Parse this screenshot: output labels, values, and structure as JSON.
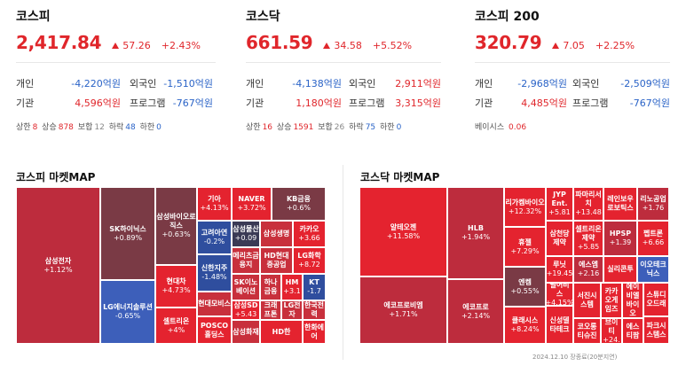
{
  "kospi": {
    "title": "코스피",
    "value": "2,417.84",
    "change": "57.26",
    "rate": "+2.43%",
    "individual_label": "개인",
    "individual_value": "-4,220억원",
    "foreign_label": "외국인",
    "foreign_value": "-1,510억원",
    "institution_label": "기관",
    "institution_value": "4,596억원",
    "program_label": "프로그램",
    "program_value": "-767억원",
    "stats": {
      "upper_label": "상한",
      "upper": "8",
      "up_label": "상승",
      "up": "878",
      "flat_label": "보합",
      "flat": "12",
      "down_label": "하락",
      "down": "48",
      "lower_label": "하한",
      "lower": "0"
    }
  },
  "kosdaq": {
    "title": "코스닥",
    "value": "661.59",
    "change": "34.58",
    "rate": "+5.52%",
    "individual_label": "개인",
    "individual_value": "-4,138억원",
    "foreign_label": "외국인",
    "foreign_value": "2,911억원",
    "institution_label": "기관",
    "institution_value": "1,180억원",
    "program_label": "프로그램",
    "program_value": "3,315억원",
    "stats": {
      "upper_label": "상한",
      "upper": "16",
      "up_label": "상승",
      "up": "1591",
      "flat_label": "보합",
      "flat": "26",
      "down_label": "하락",
      "down": "75",
      "lower_label": "하한",
      "lower": "0"
    }
  },
  "kospi200": {
    "title": "코스피 200",
    "value": "320.79",
    "change": "7.05",
    "rate": "+2.25%",
    "individual_label": "개인",
    "individual_value": "-2,968억원",
    "foreign_label": "외국인",
    "foreign_value": "-2,509억원",
    "institution_label": "기관",
    "institution_value": "4,485억원",
    "program_label": "프로그램",
    "program_value": "-767억원",
    "basis_label": "베이시스",
    "basis_value": "0.06"
  },
  "kospi_map": {
    "title": "코스피 마켓MAP",
    "tiles": [
      {
        "name": "삼성전자",
        "value": "+1.12%",
        "color": "#bd2c3d"
      },
      {
        "name": "SK하이닉스",
        "value": "+0.89%",
        "color": "#7a3a45"
      },
      {
        "name": "LG에너지솔루션",
        "value": "-0.65%",
        "color": "#3d5fba"
      },
      {
        "name": "삼성바이오로직스",
        "value": "+0.63%",
        "color": "#7a3a45"
      },
      {
        "name": "현대차",
        "value": "+4.73%",
        "color": "#e4232f"
      },
      {
        "name": "셀트리온",
        "value": "+4%",
        "color": "#e4232f"
      },
      {
        "name": "기아",
        "value": "+4.13%",
        "color": "#e4232f"
      },
      {
        "name": "NAVER",
        "value": "+3.72%",
        "color": "#e4232f"
      },
      {
        "name": "KB금융",
        "value": "+0.6%",
        "color": "#7a3a45"
      },
      {
        "name": "고려아연",
        "value": "-0.2%",
        "color": "#2f4e9e"
      },
      {
        "name": "삼성물산",
        "value": "+0.09",
        "color": "#3a3a55"
      },
      {
        "name": "삼성생명",
        "value": "",
        "color": "#c8303c"
      },
      {
        "name": "카카오",
        "value": "+3.66",
        "color": "#e4232f"
      },
      {
        "name": "메리츠금융지",
        "value": "",
        "color": "#c8303c"
      },
      {
        "name": "HD현대중공업",
        "value": "",
        "color": "#c8303c"
      },
      {
        "name": "LG화학",
        "value": "+8.72",
        "color": "#e4232f"
      },
      {
        "name": "신한지주",
        "value": "-1.48%",
        "color": "#2f4e9e"
      },
      {
        "name": "SK이노베이션",
        "value": "",
        "color": "#c8303c"
      },
      {
        "name": "하나금융",
        "value": "",
        "color": "#c8303c"
      },
      {
        "name": "HM",
        "value": "+3.1",
        "color": "#e4232f"
      },
      {
        "name": "KT",
        "value": "-1.7",
        "color": "#2f4e9e"
      },
      {
        "name": "현대모비스",
        "value": "",
        "color": "#c8303c"
      },
      {
        "name": "삼성SD",
        "value": "+5.43",
        "color": "#e4232f"
      },
      {
        "name": "크래프톤",
        "value": "",
        "color": "#c8303c"
      },
      {
        "name": "LG전자",
        "value": "",
        "color": "#c8303c"
      },
      {
        "name": "한국전력",
        "value": "",
        "color": "#c8303c"
      },
      {
        "name": "POSCO홀딩스",
        "value": "",
        "color": "#e4232f"
      },
      {
        "name": "삼성화재",
        "value": "",
        "color": "#c8303c"
      },
      {
        "name": "HD한",
        "value": "",
        "color": "#e4232f"
      },
      {
        "name": "한화에어",
        "value": "",
        "color": "#e4232f"
      }
    ]
  },
  "kosdaq_map": {
    "title": "코스닥 마켓MAP",
    "tiles": [
      {
        "name": "알테오젠",
        "value": "+11.58%",
        "color": "#e4232f"
      },
      {
        "name": "에코프로비엠",
        "value": "+1.71%",
        "color": "#bd2c3d"
      },
      {
        "name": "HLB",
        "value": "+1.94%",
        "color": "#bd2c3d"
      },
      {
        "name": "에코프로",
        "value": "+2.14%",
        "color": "#bd2c3d"
      },
      {
        "name": "리가켐바이오",
        "value": "+12.32%",
        "color": "#e4232f"
      },
      {
        "name": "휴젤",
        "value": "+7.29%",
        "color": "#e4232f"
      },
      {
        "name": "엔켐",
        "value": "+0.55%",
        "color": "#7a3a45"
      },
      {
        "name": "클래시스",
        "value": "+8.24%",
        "color": "#e4232f"
      },
      {
        "name": "JYP Ent.",
        "value": "+5.81",
        "color": "#e4232f"
      },
      {
        "name": "파마리서치",
        "value": "+13.48",
        "color": "#e4232f"
      },
      {
        "name": "레인보우로보틱스",
        "value": "",
        "color": "#e4232f"
      },
      {
        "name": "리노공업",
        "value": "+1.76",
        "color": "#bd2c3d"
      },
      {
        "name": "삼천당제약",
        "value": "",
        "color": "#e4232f"
      },
      {
        "name": "셀트리온제약",
        "value": "+5.85",
        "color": "#e4232f"
      },
      {
        "name": "HPSP",
        "value": "+1.39",
        "color": "#bd2c3d"
      },
      {
        "name": "펩트론",
        "value": "+6.66",
        "color": "#e4232f"
      },
      {
        "name": "루닛",
        "value": "+19.45",
        "color": "#e4232f"
      },
      {
        "name": "에스엠",
        "value": "+2.16",
        "color": "#bd2c3d"
      },
      {
        "name": "실리콘투",
        "value": "",
        "color": "#e4232f"
      },
      {
        "name": "이오테크닉스",
        "value": "",
        "color": "#3d5fba"
      },
      {
        "name": "펄어비스",
        "value": "+4.15%",
        "color": "#e4232f"
      },
      {
        "name": "서진시스템",
        "value": "",
        "color": "#e4232f"
      },
      {
        "name": "카카오게임즈",
        "value": "",
        "color": "#e4232f"
      },
      {
        "name": "에이비엘바이오",
        "value": "",
        "color": "#e4232f"
      },
      {
        "name": "코오롱티슈진",
        "value": "",
        "color": "#e4232f"
      },
      {
        "name": "신성델타테크",
        "value": "",
        "color": "#e4232f"
      },
      {
        "name": "에스티팜",
        "value": "",
        "color": "#e4232f"
      },
      {
        "name": "브이티",
        "value": "+24.",
        "color": "#e4232f"
      },
      {
        "name": "스튜디오드래",
        "value": "",
        "color": "#e4232f"
      },
      {
        "name": "파크시스템스",
        "value": "",
        "color": "#e4232f"
      }
    ]
  },
  "footer": "2024.12.10 장종료(20분지연)"
}
